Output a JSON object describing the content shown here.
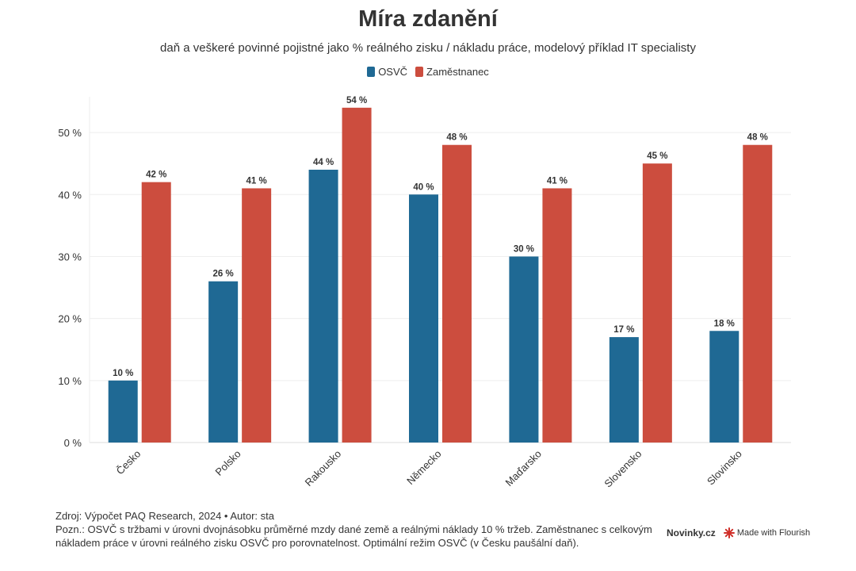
{
  "colors": {
    "osvc": "#1f6994",
    "zamestnanec": "#cc4d3e"
  },
  "title": "Míra zdanění",
  "subtitle": "daň a veškeré povinné pojistné jako % reálného zisku / nákladu práce, modelový příklad IT specialisty",
  "legend": [
    "OSVČ",
    "Zaměstnanec"
  ],
  "footer": {
    "source": "Zdroj: Výpočet PAQ Research, 2024 • Autor: sta",
    "note": "Pozn.: OSVČ s tržbami v úrovni dvojnásobku průměrné mzdy dané země a reálnými náklady 10 % tržeb. Zaměstnanec s celkovým nákladem práce v úrovni reálného zisku OSVČ pro porovnatelnost. Optimální režim OSVČ (v Česku paušální daň)."
  },
  "branding": {
    "publisher": "Novinky.cz",
    "made_with": "Made with Flourish"
  },
  "chart_data": {
    "type": "bar",
    "title": "Míra zdanění",
    "categories": [
      "Česko",
      "Polsko",
      "Rakousko",
      "Německo",
      "Maďarsko",
      "Slovensko",
      "Slovinsko"
    ],
    "series": [
      {
        "name": "OSVČ",
        "values": [
          10,
          26,
          44,
          40,
          30,
          17,
          18
        ]
      },
      {
        "name": "Zaměstnanec",
        "values": [
          42,
          41,
          54,
          48,
          41,
          45,
          48
        ]
      }
    ],
    "value_suffix": " %",
    "yticks": [
      0,
      10,
      20,
      30,
      40,
      50
    ],
    "tick_suffix": " %",
    "ylim": [
      0,
      55
    ],
    "grid": true,
    "legend_position": "top-center",
    "xlabel": "",
    "ylabel": ""
  }
}
